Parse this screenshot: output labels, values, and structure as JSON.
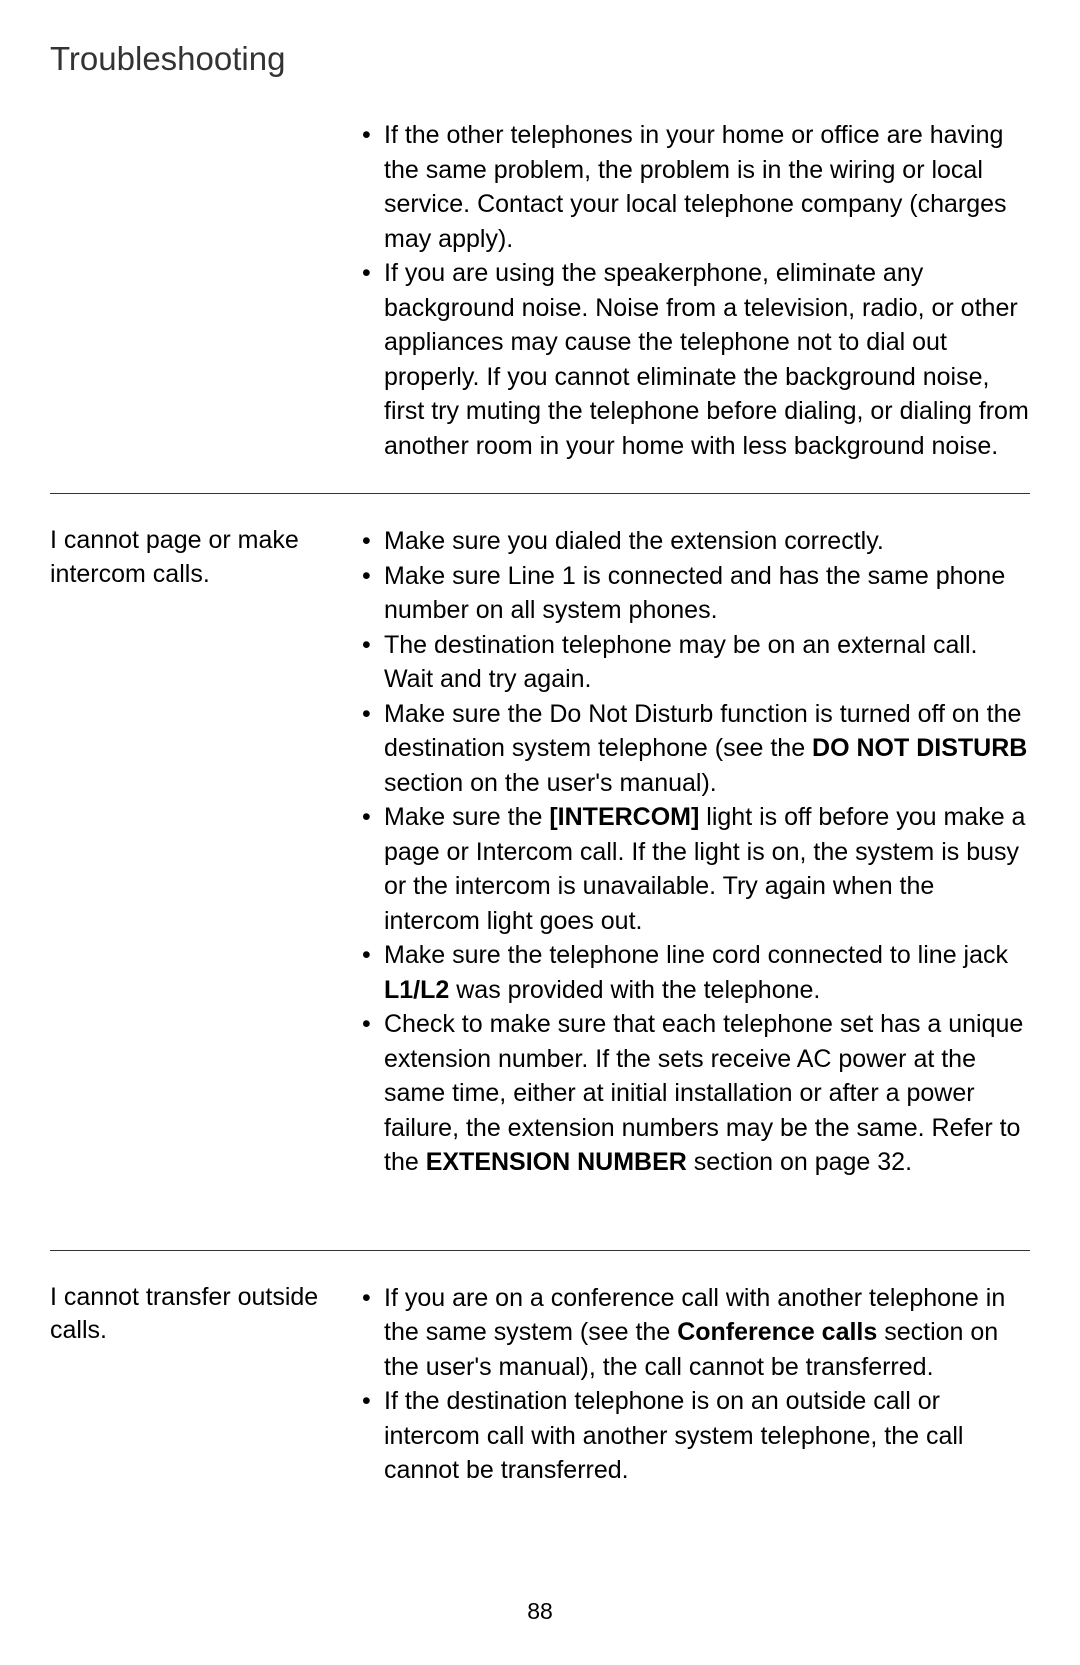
{
  "page_title": "Troubleshooting",
  "page_number": "88",
  "sections": [
    {
      "problem": "",
      "bordered": true,
      "bullets": [
        {
          "text": "If the other telephones in your home or office are having the same problem, the problem is in the wiring or local service. Contact your local telephone company (charges may apply)."
        },
        {
          "text": "If you are using the speakerphone, eliminate any background noise. Noise from a television, radio, or other appliances may cause the telephone not to dial out properly. If you cannot eliminate the background noise, first try muting the telephone before dialing, or dialing from another room in your home with less background noise."
        }
      ]
    },
    {
      "problem": "I cannot page or make intercom calls.",
      "bordered": true,
      "extra_space": true,
      "bullets": [
        {
          "text": "Make sure you dialed the extension correctly."
        },
        {
          "text": "Make sure Line 1 is connected and has the same phone number on all system phones."
        },
        {
          "text": "The destination telephone may be on an external call. Wait and try again."
        },
        {
          "parts": [
            {
              "t": "Make sure the Do Not Disturb function is turned off on the destination system telephone (see the "
            },
            {
              "t": "DO NOT DISTURB",
              "bold": true
            },
            {
              "t": " section on the user's manual)."
            }
          ]
        },
        {
          "parts": [
            {
              "t": "Make sure the "
            },
            {
              "t": "[INTERCOM]",
              "bold": true
            },
            {
              "t": " light is off before you make a page or Intercom call. If the light is on, the system is busy or the intercom is unavailable. Try again when the intercom light goes out."
            }
          ]
        },
        {
          "parts": [
            {
              "t": "Make sure the telephone line cord connected to line jack "
            },
            {
              "t": "L1/L2",
              "bold": true
            },
            {
              "t": " was provided with the telephone."
            }
          ]
        },
        {
          "parts": [
            {
              "t": "Check to make sure that each telephone set has a unique extension number. If the sets receive AC power at the same time, either at initial installation or after a power failure, the extension numbers may be the same. Refer to the "
            },
            {
              "t": "EXTENSION NUMBER",
              "bold": true
            },
            {
              "t": " section on page 32."
            }
          ]
        }
      ]
    },
    {
      "problem": "I cannot transfer outside calls.",
      "bordered": false,
      "bullets": [
        {
          "parts": [
            {
              "t": "If you are on a conference call with another telephone in the same system (see the "
            },
            {
              "t": "Conference calls",
              "bold": true
            },
            {
              "t": " section on the user's manual), the call cannot be transferred."
            }
          ]
        },
        {
          "text": "If the destination telephone is on an outside call or intercom call with another system telephone, the call cannot be transferred."
        }
      ]
    }
  ]
}
